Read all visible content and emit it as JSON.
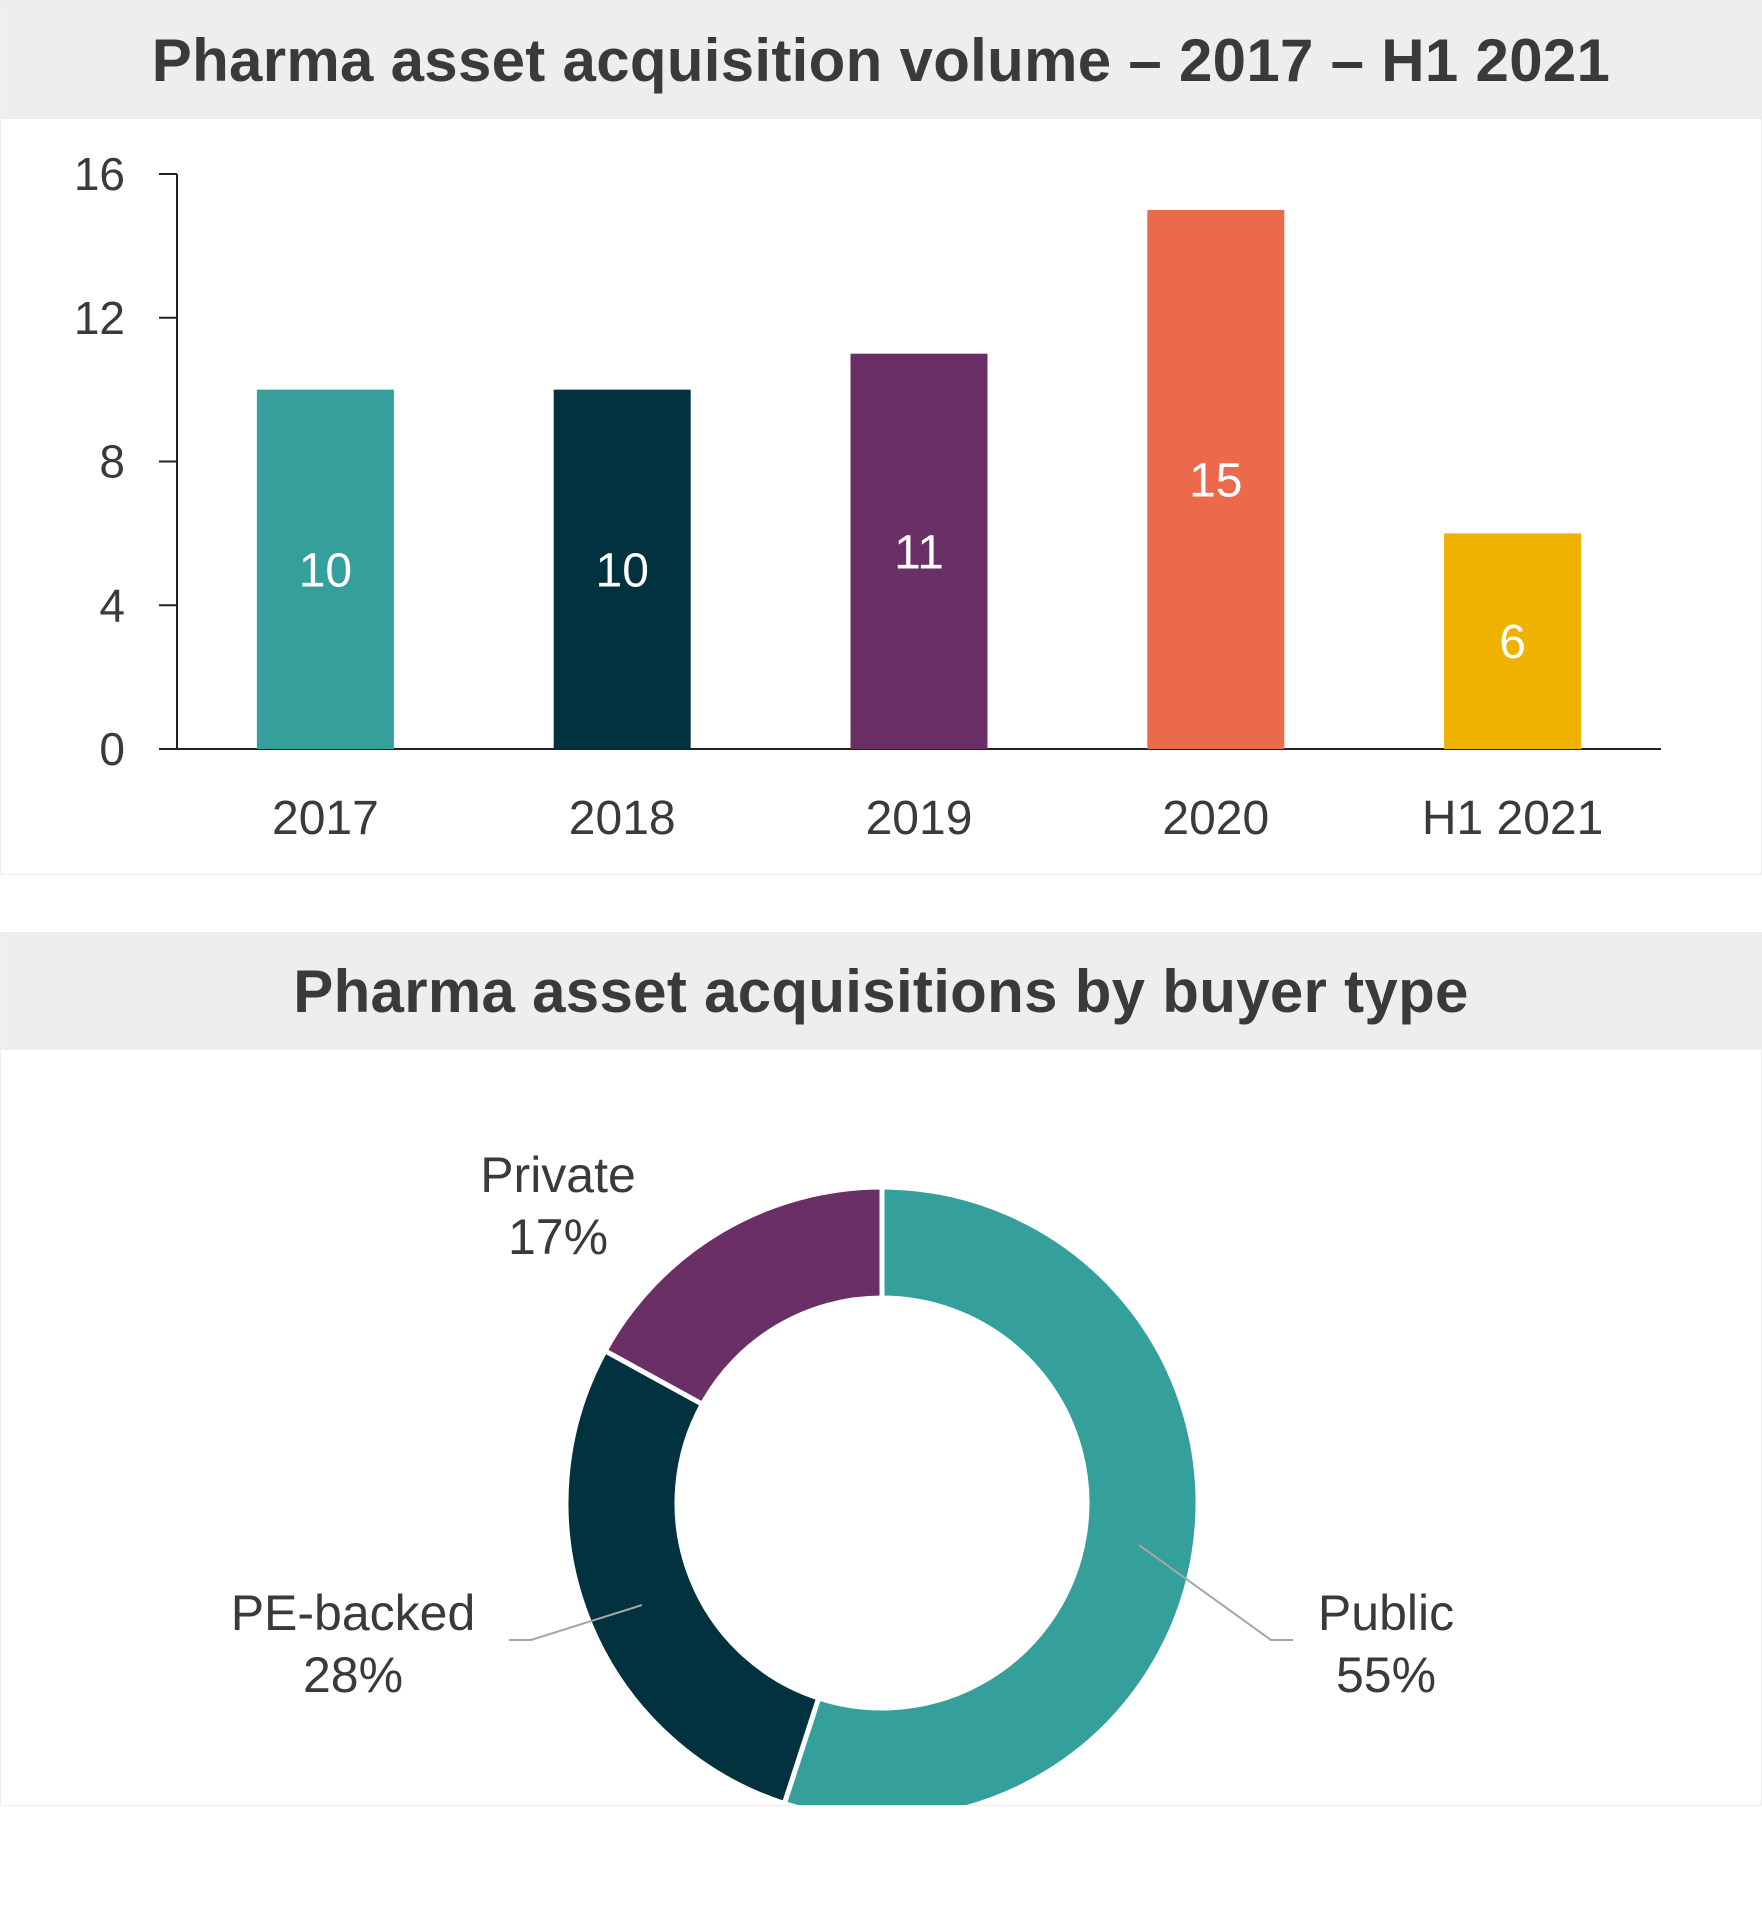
{
  "charts": [
    {
      "title": "Pharma asset acquisition volume – 2017 – H1 2021",
      "chart_data": {
        "type": "bar",
        "categories": [
          "2017",
          "2018",
          "2019",
          "2020",
          "H1 2021"
        ],
        "values": [
          10,
          10,
          11,
          15,
          6
        ],
        "value_labels": [
          "10",
          "10",
          "11",
          "15",
          "6"
        ],
        "colors": [
          "#35a09b",
          "#02323f",
          "#6a2f64",
          "#ec6a4c",
          "#f0b200"
        ],
        "ylim": [
          0,
          16
        ],
        "yticks": [
          0,
          4,
          8,
          12,
          16
        ],
        "ytick_labels": [
          "0",
          "4",
          "8",
          "12",
          "16"
        ],
        "xlabel": "",
        "ylabel": "",
        "grid": false,
        "legend": "none"
      }
    },
    {
      "title": "Pharma asset acquisitions by buyer type",
      "chart_data": {
        "type": "pie",
        "donut": true,
        "slices": [
          {
            "label": "Public",
            "value": 55,
            "value_label": "55%",
            "color": "#35a09b"
          },
          {
            "label": "PE-backed",
            "value": 28,
            "value_label": "28%",
            "color": "#02323f"
          },
          {
            "label": "Private",
            "value": 17,
            "value_label": "17%",
            "color": "#6a2f64"
          }
        ],
        "legend": "none"
      }
    }
  ]
}
